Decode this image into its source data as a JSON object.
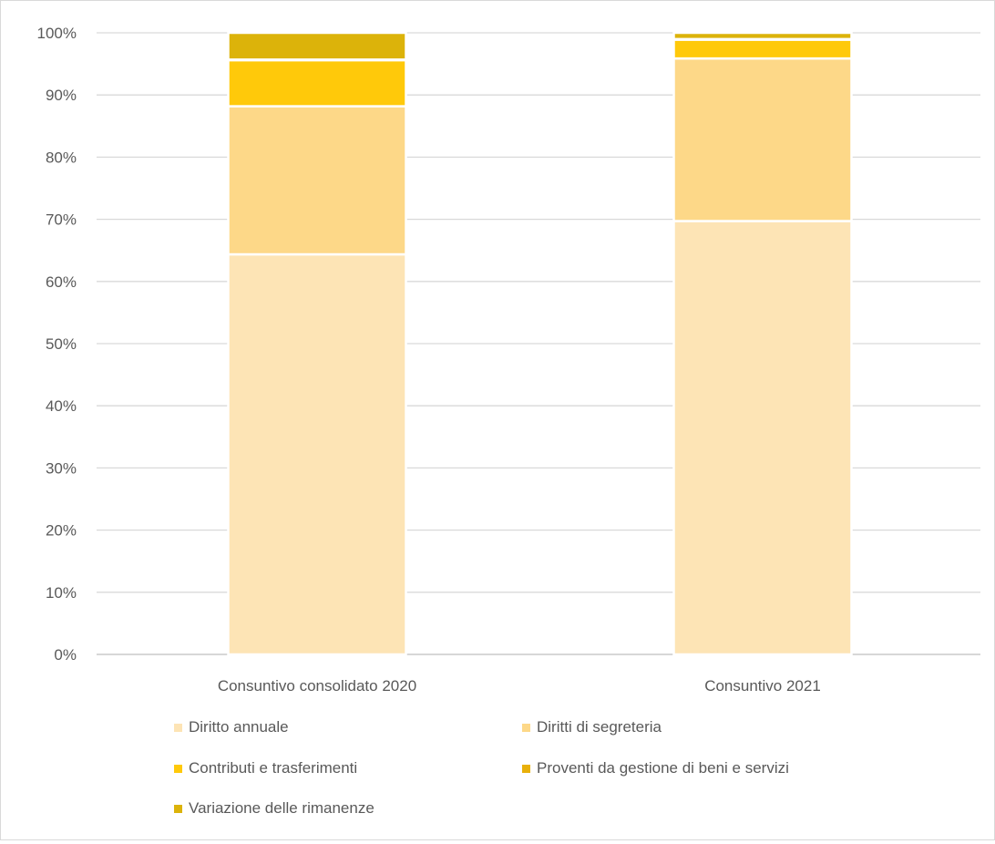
{
  "chart_data": {
    "type": "bar",
    "stacked": "percent",
    "categories": [
      "Consuntivo consolidato 2020",
      "Consuntivo 2021"
    ],
    "series": [
      {
        "name": "Diritto annuale",
        "color": "#fde4b5",
        "values": [
          64.3,
          69.3
        ]
      },
      {
        "name": "Diritti di segreteria",
        "color": "#fdd888",
        "values": [
          23.8,
          26.0
        ]
      },
      {
        "name": "Contributi e trasferimenti",
        "color": "#ffc90a",
        "values": [
          7.4,
          3.0
        ]
      },
      {
        "name": "Proventi da gestione di beni e servizi",
        "color": "#e8b00a",
        "values": [
          0.1,
          0.1
        ]
      },
      {
        "name": "Variazione delle rimanenze",
        "color": "#dcb30a",
        "values": [
          4.3,
          1.0
        ]
      }
    ],
    "ylim": [
      0,
      100
    ],
    "yticks": [
      "0%",
      "10%",
      "20%",
      "30%",
      "40%",
      "50%",
      "60%",
      "70%",
      "80%",
      "90%",
      "100%"
    ],
    "grid": true,
    "legend_position": "bottom"
  }
}
